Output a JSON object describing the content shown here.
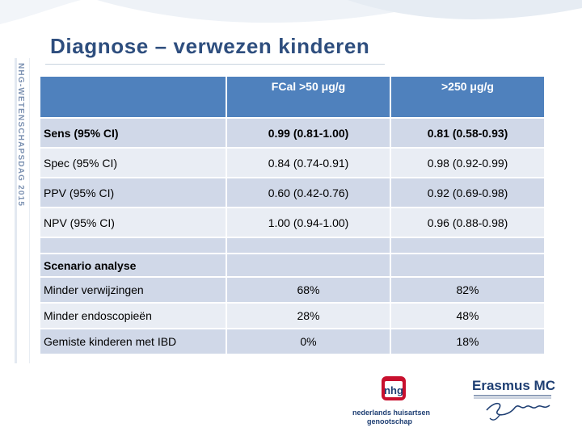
{
  "slide": {
    "title": "Diagnose – verwezen kinderen",
    "side_label": "NHG-WETENSCHAPSDAG 2015"
  },
  "table": {
    "header": [
      "",
      "FCal >50 μg/g",
      ">250 μg/g"
    ],
    "rows": [
      [
        "Sens (95% CI)",
        "0.99 (0.81-1.00)",
        "0.81 (0.58-0.93)"
      ],
      [
        "Spec (95% CI)",
        "0.84 (0.74-0.91)",
        "0.98 (0.92-0.99)"
      ],
      [
        "PPV (95% CI)",
        "0.60 (0.42-0.76)",
        "0.92 (0.69-0.98)"
      ],
      [
        "NPV (95% CI)",
        "1.00 (0.94-1.00)",
        "0.96 (0.88-0.98)"
      ]
    ],
    "scenario_label": "Scenario analyse",
    "scenario_rows": [
      [
        "Minder verwijzingen",
        "68%",
        "82%"
      ],
      [
        "Minder endoscopieën",
        "28%",
        "48%"
      ],
      [
        "Gemiste kinderen met IBD",
        "0%",
        "18%"
      ]
    ]
  },
  "logos": {
    "nhg_mark": "nhg",
    "nhg_line1": "nederlands huisartsen",
    "nhg_line2": "genootschap",
    "erasmus_name": "Erasmus MC"
  },
  "colors": {
    "title": "#2e4e7e",
    "header_fill": "#4f81bd",
    "row_dark": "#d0d8e8",
    "row_light": "#e9edf4",
    "nhg_red": "#c8102e",
    "nhg_blue": "#1f3f73"
  }
}
